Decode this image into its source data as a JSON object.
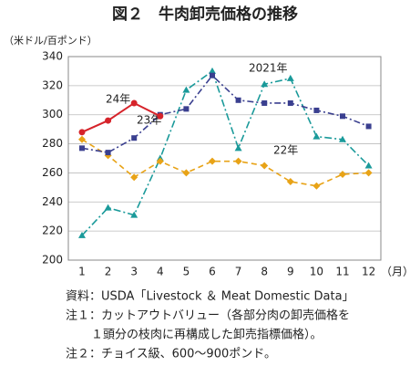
{
  "chart_data": {
    "type": "line",
    "title": "図２　牛肉卸売価格の推移",
    "y_label": "（米ドル/百ポンド）",
    "x_label": "（月）",
    "categories": [
      "1",
      "2",
      "3",
      "4",
      "5",
      "6",
      "7",
      "8",
      "9",
      "10",
      "11",
      "12"
    ],
    "ylim": [
      200,
      340
    ],
    "yticks": [
      200,
      220,
      240,
      260,
      280,
      300,
      320,
      340
    ],
    "grid": true,
    "series": [
      {
        "name": "2021年",
        "color": "#1a9a9a",
        "marker": "triangle",
        "dash": "8 3 2 3",
        "values": [
          217,
          236,
          231,
          270,
          317,
          330,
          277,
          321,
          325,
          285,
          283,
          265
        ]
      },
      {
        "name": "22年",
        "color": "#e8a317",
        "marker": "diamond",
        "dash": "6 4",
        "values": [
          283,
          272,
          257,
          268,
          260,
          268,
          268,
          265,
          254,
          251,
          259,
          260
        ]
      },
      {
        "name": "23年",
        "color": "#3a3f8f",
        "marker": "square",
        "dash": "7 3 2 3",
        "values": [
          277,
          274,
          284,
          300,
          304,
          327,
          310,
          308,
          308,
          303,
          299,
          292
        ]
      },
      {
        "name": "24年",
        "color": "#d6232a",
        "marker": "circle",
        "dash": "",
        "values": [
          288,
          296,
          308,
          299,
          null,
          null,
          null,
          null,
          null,
          null,
          null,
          null
        ]
      }
    ],
    "notes": [
      "資料：USDA「Livestock ＆ Meat Domestic Data」",
      "注１：カットアウトバリュー（各部分肉の卸売価格を",
      "１頭分の枝肉に再構成した卸売指標価格）。",
      "注２：チョイス級、600〜900ポンド。"
    ]
  }
}
